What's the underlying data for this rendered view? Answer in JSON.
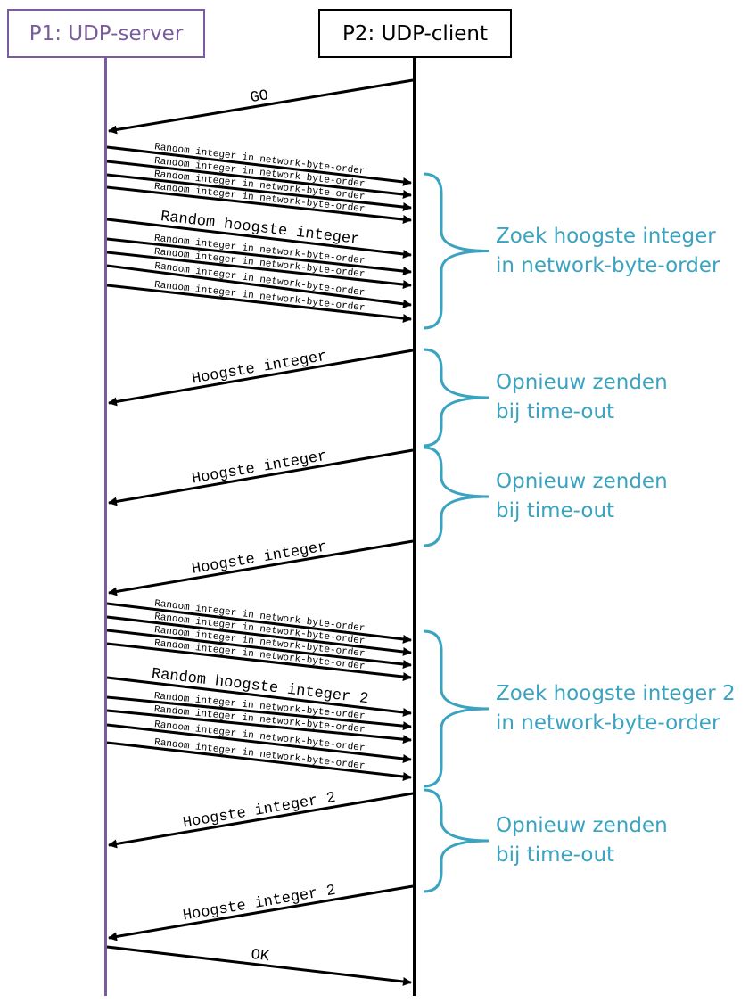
{
  "colors": {
    "server": "#7a5c9e",
    "client": "#000000",
    "arrow": "#000000",
    "note": "#3aa3bf"
  },
  "actors": {
    "server": {
      "label": "P1: UDP-server"
    },
    "client": {
      "label": "P2: UDP-client"
    }
  },
  "messages": [
    {
      "from": "client",
      "label": "GO",
      "size": "large"
    },
    {
      "from": "server",
      "label": "Random integer in network-byte-order",
      "size": "small"
    },
    {
      "from": "server",
      "label": "Random integer in network-byte-order",
      "size": "small"
    },
    {
      "from": "server",
      "label": "Random integer in network-byte-order",
      "size": "small"
    },
    {
      "from": "server",
      "label": "Random integer in network-byte-order",
      "size": "small"
    },
    {
      "from": "server",
      "label": "Random hoogste integer",
      "size": "large"
    },
    {
      "from": "server",
      "label": "Random integer in network-byte-order",
      "size": "small"
    },
    {
      "from": "server",
      "label": "Random integer in network-byte-order",
      "size": "small"
    },
    {
      "from": "server",
      "label": "Random integer in network-byte-order",
      "size": "small"
    },
    {
      "from": "server",
      "label": "Random integer in network-byte-order",
      "size": "small"
    },
    {
      "from": "client",
      "label": "Hoogste integer",
      "size": "large"
    },
    {
      "from": "client",
      "label": "Hoogste integer",
      "size": "large"
    },
    {
      "from": "client",
      "label": "Hoogste integer",
      "size": "large"
    },
    {
      "from": "server",
      "label": "Random integer in network-byte-order",
      "size": "small"
    },
    {
      "from": "server",
      "label": "Random integer in network-byte-order",
      "size": "small"
    },
    {
      "from": "server",
      "label": "Random integer in network-byte-order",
      "size": "small"
    },
    {
      "from": "server",
      "label": "Random integer in network-byte-order",
      "size": "small"
    },
    {
      "from": "server",
      "label": "Random hoogste integer 2",
      "size": "large"
    },
    {
      "from": "server",
      "label": "Random integer in network-byte-order",
      "size": "small"
    },
    {
      "from": "server",
      "label": "Random integer in network-byte-order",
      "size": "small"
    },
    {
      "from": "server",
      "label": "Random integer in network-byte-order",
      "size": "small"
    },
    {
      "from": "server",
      "label": "Random integer in network-byte-order",
      "size": "small"
    },
    {
      "from": "client",
      "label": "Hoogste integer 2",
      "size": "large"
    },
    {
      "from": "client",
      "label": "Hoogste integer 2",
      "size": "large"
    },
    {
      "from": "server",
      "label": "OK",
      "size": "large"
    }
  ],
  "notes": [
    {
      "lines": [
        "Zoek hoogste integer",
        "in network-byte-order"
      ]
    },
    {
      "lines": [
        "Opnieuw zenden",
        "bij time-out"
      ]
    },
    {
      "lines": [
        "Opnieuw zenden",
        "bij time-out"
      ]
    },
    {
      "lines": [
        "Zoek hoogste integer 2",
        "in network-byte-order"
      ]
    },
    {
      "lines": [
        "Opnieuw zenden",
        "bij time-out"
      ]
    }
  ]
}
